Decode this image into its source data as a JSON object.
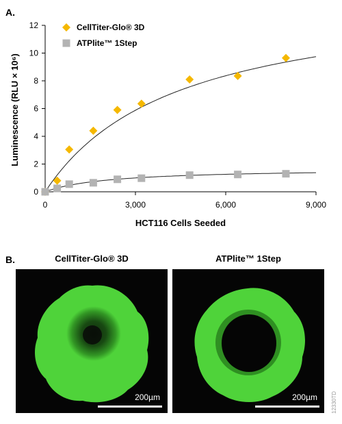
{
  "panel_a_label": "A.",
  "panel_b_label": "B.",
  "chart_data": {
    "type": "scatter",
    "xlabel": "HCT116 Cells Seeded",
    "ylabel": "Luminescence (RLU × 10⁶)",
    "xlim": [
      0,
      9000
    ],
    "ylim": [
      0,
      12
    ],
    "x_ticks": [
      "0",
      "3,000",
      "6,000",
      "9,000"
    ],
    "y_ticks": [
      "0",
      "2",
      "4",
      "6",
      "8",
      "10",
      "12"
    ],
    "legend_position": "top-left",
    "series": [
      {
        "name": "CellTiter-Glo® 3D",
        "marker": "diamond",
        "color": "#f5b800",
        "x": [
          0,
          400,
          800,
          1600,
          2400,
          3200,
          4800,
          6400,
          8000
        ],
        "y": [
          0,
          0.8,
          3.05,
          4.4,
          5.9,
          6.35,
          8.1,
          8.35,
          9.65
        ],
        "fit": {
          "model": "hyperbolic",
          "a": 14.5,
          "b": 4400
        }
      },
      {
        "name": "ATPlite™ 1Step",
        "marker": "square",
        "color": "#b3b3b3",
        "x": [
          0,
          400,
          800,
          1600,
          2400,
          3200,
          4800,
          6400,
          8000
        ],
        "y": [
          0,
          0.25,
          0.55,
          0.65,
          0.9,
          0.98,
          1.2,
          1.25,
          1.3
        ],
        "fit": {
          "model": "hyperbolic",
          "a": 1.7,
          "b": 2100
        }
      }
    ]
  },
  "images": [
    {
      "title": "CellTiter-Glo® 3D",
      "scale_label": "200µm",
      "description": "spheroid"
    },
    {
      "title": "ATPlite™ 1Step",
      "scale_label": "200µm",
      "description": "spheroid"
    }
  ],
  "catalog_number": "12330TD",
  "colors": {
    "spheroid_green": "#4fd33a",
    "background": "#050505"
  }
}
